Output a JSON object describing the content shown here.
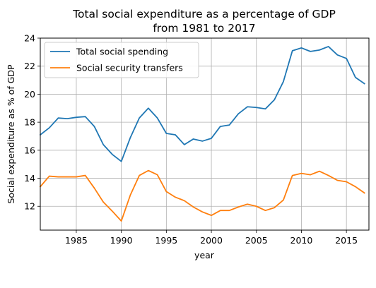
{
  "chart_data": {
    "type": "line",
    "title": "Total social expenditure as a percentage of GDP",
    "subtitle": "from 1981 to 2017",
    "xlabel": "year",
    "ylabel": "Social expenditure as % of GDP",
    "xlim": [
      1981,
      2017.5
    ],
    "ylim": [
      10.3,
      24
    ],
    "x_ticks": [
      1985,
      1990,
      1995,
      2000,
      2005,
      2010,
      2015
    ],
    "y_ticks": [
      12,
      14,
      16,
      18,
      20,
      22,
      24
    ],
    "grid": true,
    "legend_position": "top-left",
    "x": [
      1981,
      1982,
      1983,
      1984,
      1985,
      1986,
      1987,
      1988,
      1989,
      1990,
      1991,
      1992,
      1993,
      1994,
      1995,
      1996,
      1997,
      1998,
      1999,
      2000,
      2001,
      2002,
      2003,
      2004,
      2005,
      2006,
      2007,
      2008,
      2009,
      2010,
      2011,
      2012,
      2013,
      2014,
      2015,
      2016,
      2017
    ],
    "series": [
      {
        "name": "Total social spending",
        "color": "#1f77b4",
        "values": [
          17.1,
          17.6,
          18.3,
          18.25,
          18.35,
          18.4,
          17.7,
          16.4,
          15.7,
          15.2,
          16.9,
          18.3,
          19.0,
          18.3,
          17.2,
          17.1,
          16.4,
          16.8,
          16.65,
          16.85,
          17.7,
          17.8,
          18.6,
          19.1,
          19.05,
          18.95,
          19.6,
          20.9,
          23.1,
          23.3,
          23.05,
          23.15,
          23.4,
          22.8,
          22.55,
          21.2,
          20.75
        ]
      },
      {
        "name": "Social security transfers",
        "color": "#ff7f0e",
        "values": [
          13.4,
          14.15,
          14.1,
          14.1,
          14.1,
          14.2,
          13.3,
          12.3,
          11.65,
          10.95,
          12.8,
          14.2,
          14.55,
          14.25,
          13.05,
          12.65,
          12.4,
          11.95,
          11.6,
          11.35,
          11.7,
          11.7,
          11.95,
          12.15,
          12.0,
          11.7,
          11.9,
          12.45,
          14.2,
          14.35,
          14.25,
          14.5,
          14.2,
          13.85,
          13.75,
          13.4,
          12.95
        ]
      }
    ]
  }
}
